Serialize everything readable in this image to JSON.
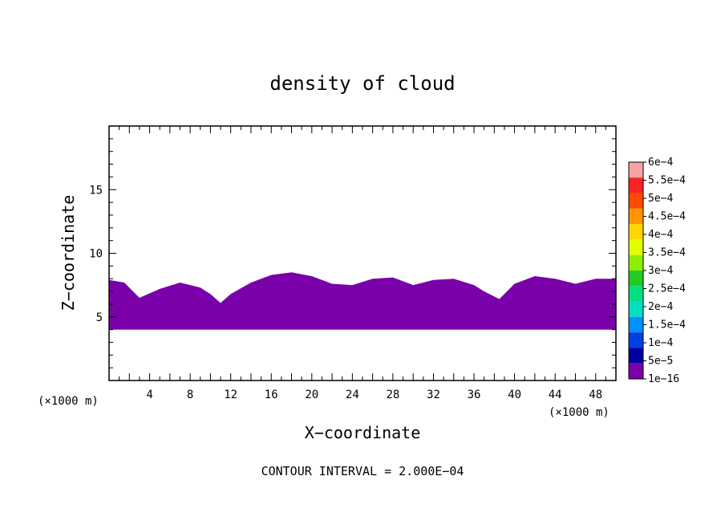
{
  "chart_data": {
    "type": "heatmap",
    "title": "density of cloud",
    "xlabel": "X−coordinate",
    "ylabel": "Z−coordinate",
    "x_unit": "(×1000 m)",
    "y_unit": "(×1000 m)",
    "xlim": [
      0,
      50
    ],
    "ylim": [
      0,
      20
    ],
    "x_ticks": [
      4,
      8,
      12,
      16,
      20,
      24,
      28,
      32,
      36,
      40,
      44,
      48
    ],
    "y_ticks": [
      5,
      10,
      15
    ],
    "footer": "CONTOUR INTERVAL = 2.000E−04",
    "fill_color": "#7a00aa",
    "cloud_base": 4.0,
    "cloud_top_profile": {
      "x": [
        0,
        1.5,
        3,
        5,
        7,
        9,
        10,
        11,
        12,
        14,
        16,
        18,
        20,
        22,
        24,
        26,
        28,
        30,
        32,
        34,
        36,
        37,
        38.5,
        40,
        42,
        44,
        46,
        48,
        50
      ],
      "z": [
        7.9,
        7.7,
        6.5,
        7.2,
        7.7,
        7.3,
        6.8,
        6.1,
        6.8,
        7.7,
        8.3,
        8.5,
        8.2,
        7.6,
        7.5,
        8.0,
        8.1,
        7.5,
        7.9,
        8.0,
        7.5,
        7.0,
        6.4,
        7.6,
        8.2,
        8.0,
        7.6,
        8.0,
        8.0
      ]
    },
    "legend": {
      "labels": [
        "6e−4",
        "5.5e−4",
        "5e−4",
        "4.5e−4",
        "4e−4",
        "3.5e−4",
        "3e−4",
        "2.5e−4",
        "2e−4",
        "1.5e−4",
        "1e−4",
        "5e−5",
        "1e−16"
      ],
      "colors": [
        "#f5a3a3",
        "#ff2222",
        "#ff4b00",
        "#ff9600",
        "#ffd700",
        "#e0ff00",
        "#90ee00",
        "#22cc22",
        "#00e080",
        "#00e0c0",
        "#0090ff",
        "#0040e0",
        "#0000a0",
        "#7a00aa"
      ]
    }
  }
}
